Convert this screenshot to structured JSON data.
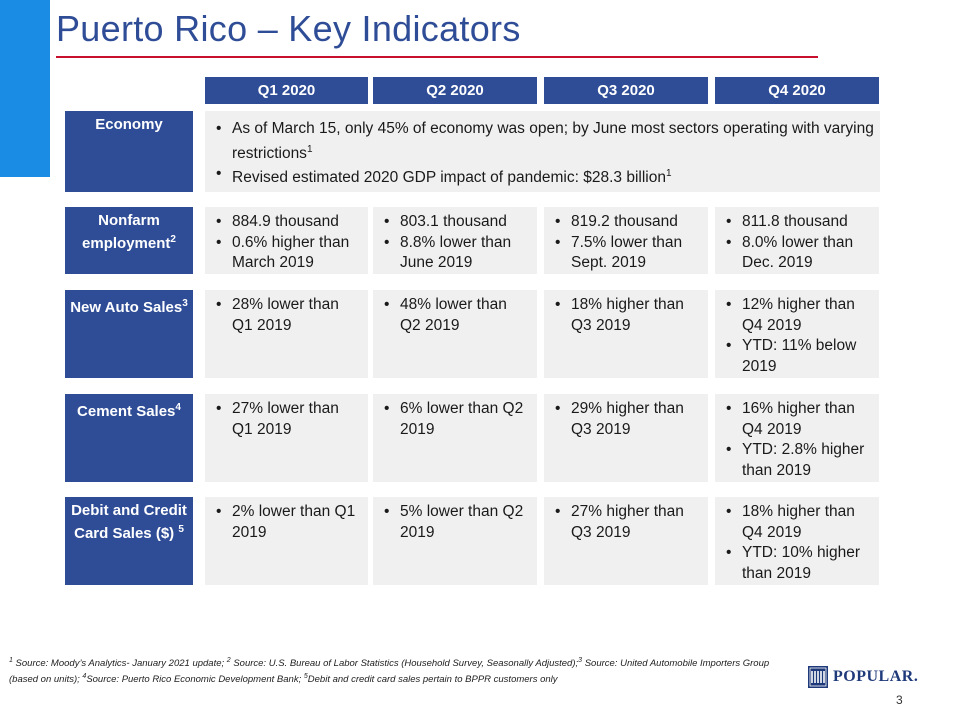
{
  "title": "Puerto Rico – Key Indicators",
  "quarters": [
    "Q1 2020",
    "Q2 2020",
    "Q3 2020",
    "Q4 2020"
  ],
  "rows": {
    "economy": {
      "label": "Economy",
      "bullets": [
        {
          "text": "As of March 15, only 45% of economy was open; by June most sectors operating with varying restrictions",
          "sup": "1"
        },
        {
          "text": "Revised estimated 2020 GDP impact of pandemic: $28.3 billion",
          "sup": "1"
        }
      ]
    },
    "nonfarm": {
      "label": "Nonfarm employment",
      "label_sup": "2",
      "cells": [
        [
          "884.9 thousand",
          "0.6% higher than March 2019"
        ],
        [
          "803.1 thousand",
          "8.8% lower than June 2019"
        ],
        [
          "819.2 thousand",
          "7.5% lower than Sept. 2019"
        ],
        [
          "811.8 thousand",
          "8.0% lower than Dec. 2019"
        ]
      ]
    },
    "auto": {
      "label": "New Auto Sales",
      "label_sup": "3",
      "cells": [
        [
          "28% lower than Q1 2019"
        ],
        [
          "48% lower than Q2 2019"
        ],
        [
          "18% higher than Q3 2019"
        ],
        [
          "12% higher than Q4 2019",
          "YTD: 11% below 2019"
        ]
      ]
    },
    "cement": {
      "label": "Cement Sales",
      "label_sup": "4",
      "cells": [
        [
          "27% lower than Q1 2019"
        ],
        [
          "6% lower than Q2 2019"
        ],
        [
          "29% higher than Q3 2019"
        ],
        [
          "16% higher than Q4 2019",
          "YTD: 2.8% higher than 2019"
        ]
      ]
    },
    "cards": {
      "label": "Debit and Credit Card Sales ($)",
      "label_sup": "5",
      "cells": [
        [
          "2% lower than Q1 2019"
        ],
        [
          "5% lower than Q2 2019"
        ],
        [
          "27% higher than Q3 2019"
        ],
        [
          "18% higher than Q4 2019",
          "YTD: 10% higher than 2019"
        ]
      ]
    }
  },
  "footnote": {
    "s1": "1",
    "t1": " Source: Moody’s Analytics- January 2021 update;  ",
    "s2": "2",
    "t2": " Source: U.S. Bureau of Labor Statistics (Household Survey, Seasonally Adjusted);",
    "s3": "3",
    "t3": " Source: United Automobile Importers Group (based on units);  ",
    "s4": "4",
    "t4": "Source: Puerto Rico Economic Development Bank; ",
    "s5": "5",
    "t5": "Debit and credit card sales pertain to BPPR customers only"
  },
  "logo_text": "POPULAR.",
  "logo_icon": "popular-logo-mark",
  "page_number": "3",
  "colors": {
    "navy": "#2f4d97",
    "accent_blue": "#1b8ce3",
    "rule_red": "#c8102e",
    "cell_gray": "#f0f0f0"
  }
}
